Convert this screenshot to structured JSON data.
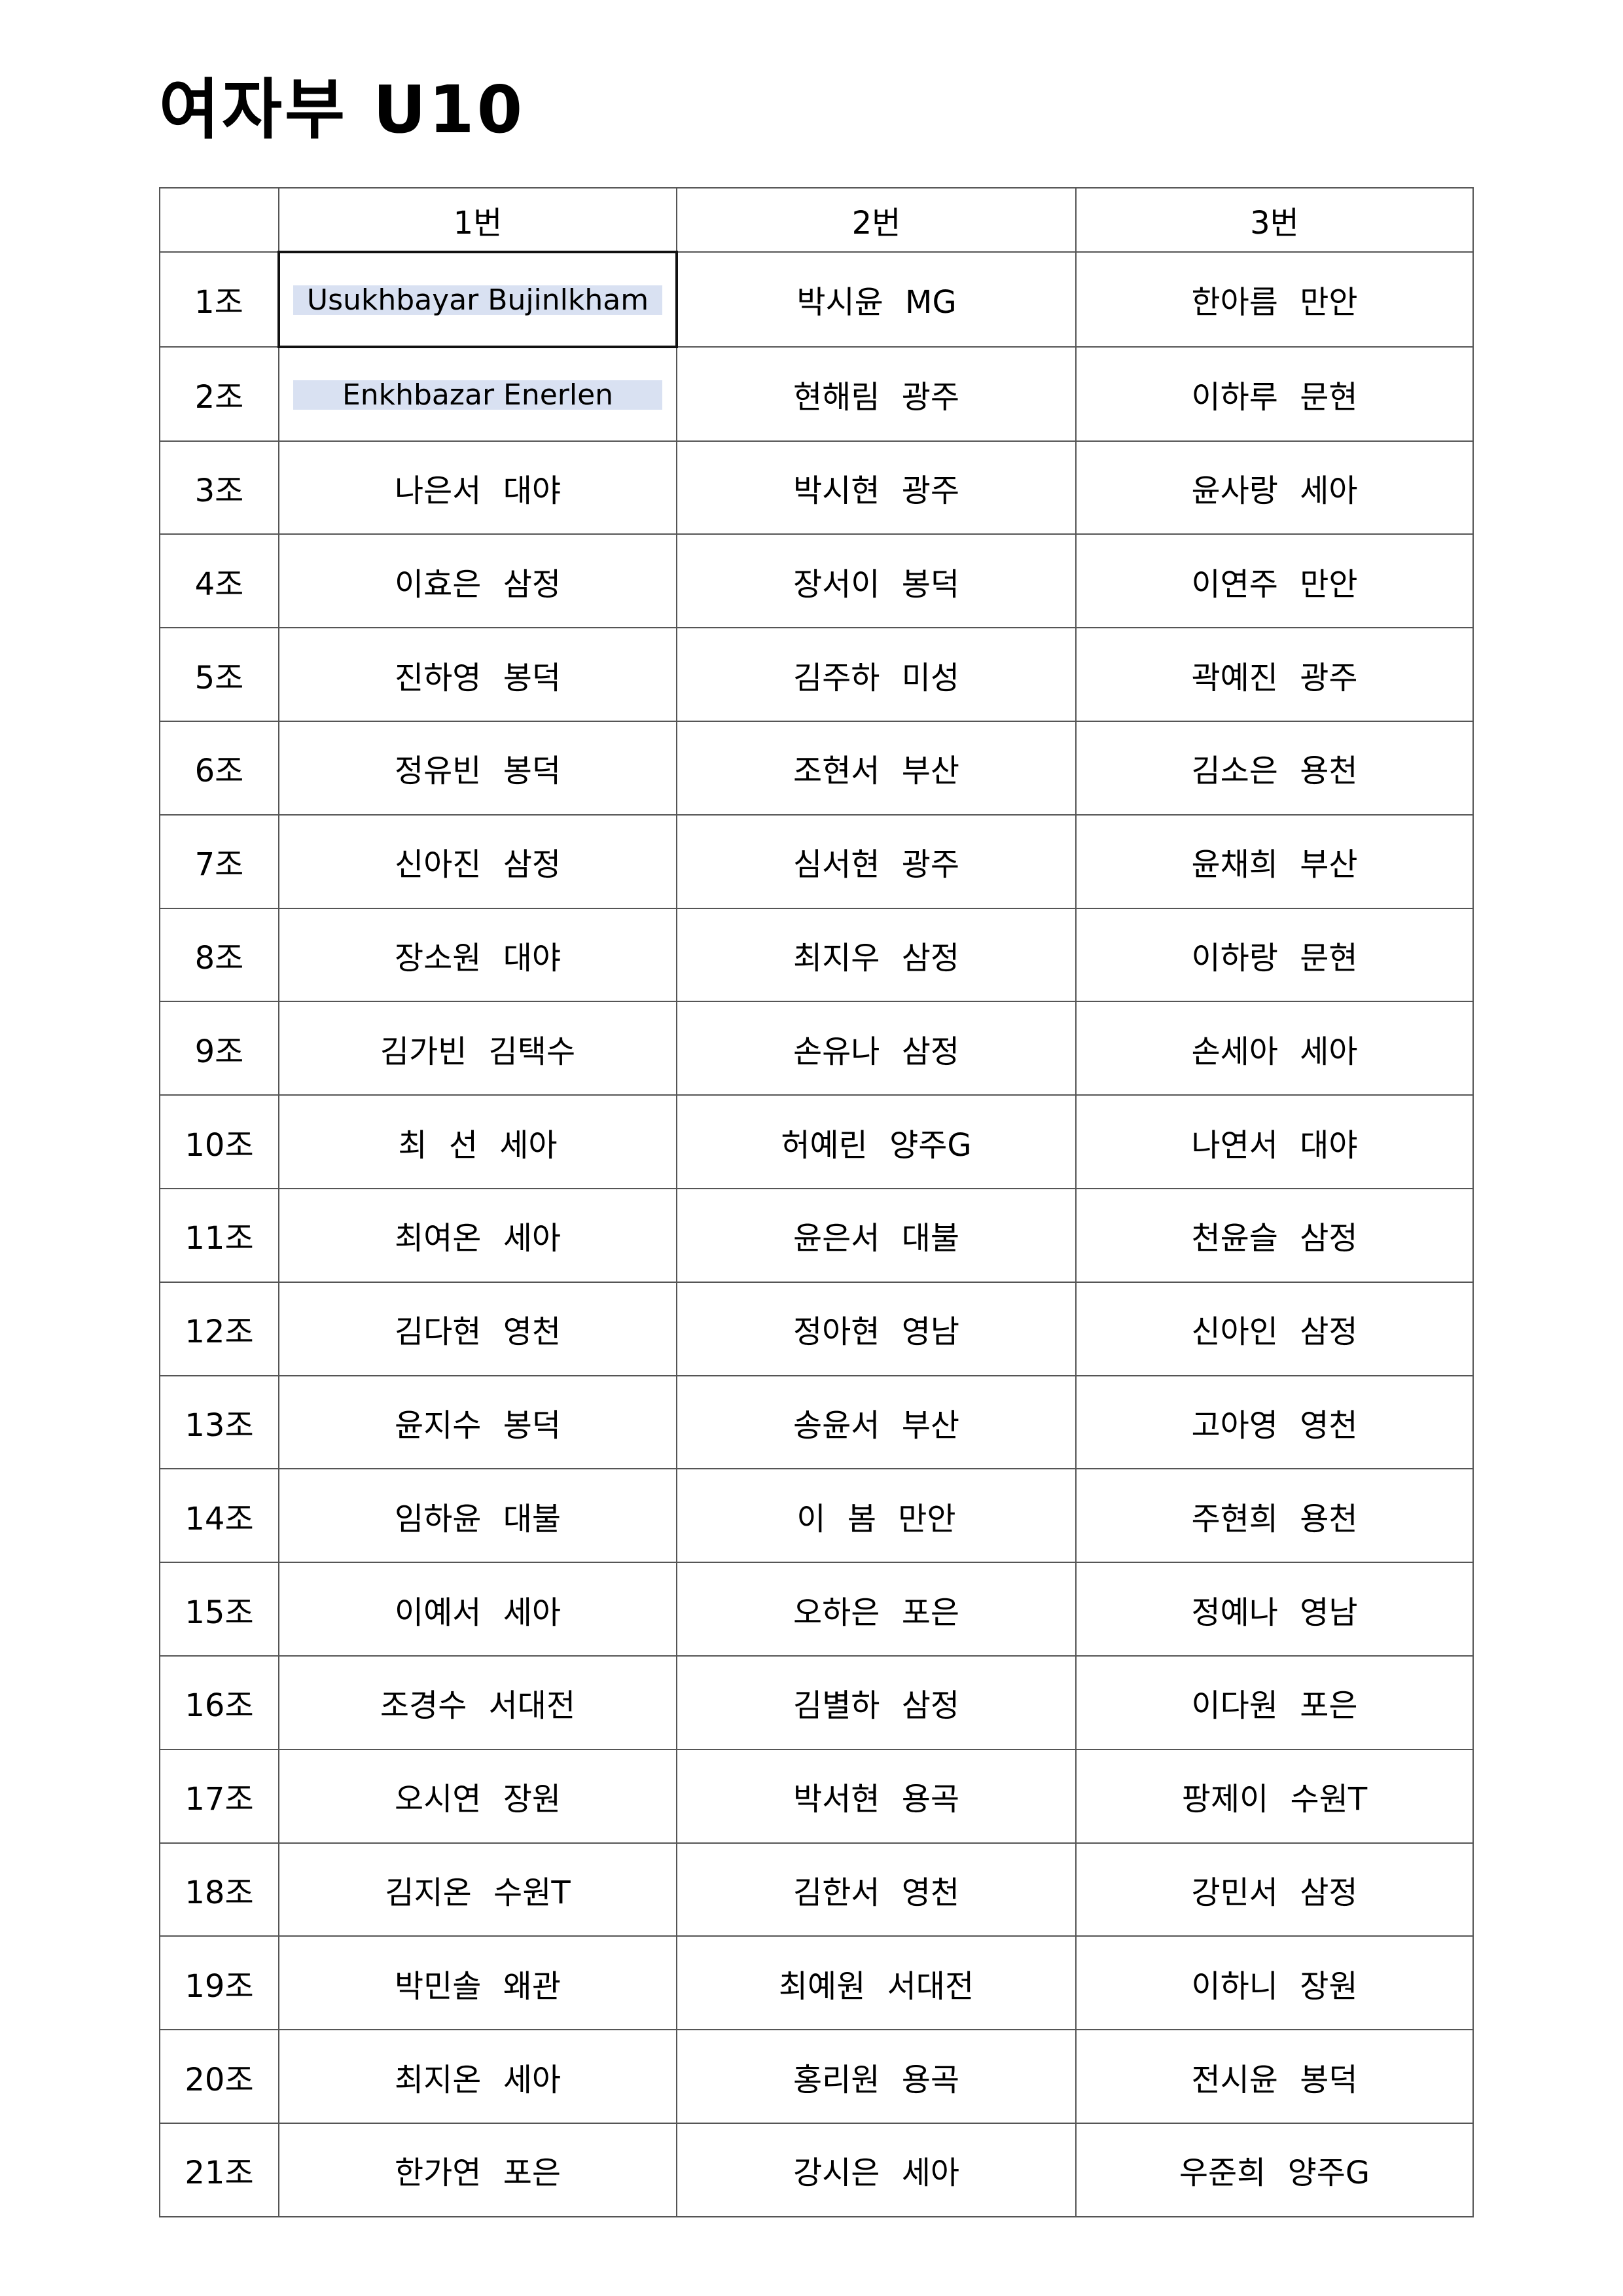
{
  "title": "여자부 U10",
  "headers": [
    "",
    "1번",
    "2번",
    "3번"
  ],
  "highlight_color": "#d9e1f2",
  "rows": [
    {
      "group": "1조",
      "p1": "Usukhbayar Bujinlkham",
      "p2": "박시윤 MG",
      "p3": "한아름 만안",
      "highlight": true,
      "selected": true
    },
    {
      "group": "2조",
      "p1": "Enkhbazar Enerlen",
      "p2": "현해림 광주",
      "p3": "이하루 문현",
      "highlight": true
    },
    {
      "group": "3조",
      "p1": "나은서 대야",
      "p2": "박시현 광주",
      "p3": "윤사랑 세아"
    },
    {
      "group": "4조",
      "p1": "이효은 삼정",
      "p2": "장서이 봉덕",
      "p3": "이연주 만안"
    },
    {
      "group": "5조",
      "p1": "진하영 봉덕",
      "p2": "김주하 미성",
      "p3": "곽예진 광주"
    },
    {
      "group": "6조",
      "p1": "정유빈 봉덕",
      "p2": "조현서 부산",
      "p3": "김소은 용천"
    },
    {
      "group": "7조",
      "p1": "신아진 삼정",
      "p2": "심서현 광주",
      "p3": "윤채희 부산"
    },
    {
      "group": "8조",
      "p1": "장소원 대야",
      "p2": "최지우 삼정",
      "p3": "이하랑 문현"
    },
    {
      "group": "9조",
      "p1": "김가빈 김택수",
      "p2": "손유나 삼정",
      "p3": "손세아 세아"
    },
    {
      "group": "10조",
      "p1": "최 선 세아",
      "p2": "허예린 양주G",
      "p3": "나연서 대야"
    },
    {
      "group": "11조",
      "p1": "최여온 세아",
      "p2": "윤은서 대불",
      "p3": "천윤슬 삼정"
    },
    {
      "group": "12조",
      "p1": "김다현 영천",
      "p2": "정아현 영남",
      "p3": "신아인 삼정"
    },
    {
      "group": "13조",
      "p1": "윤지수 봉덕",
      "p2": "송윤서 부산",
      "p3": "고아영 영천"
    },
    {
      "group": "14조",
      "p1": "임하윤 대불",
      "p2": "이 봄 만안",
      "p3": "주현희 용천"
    },
    {
      "group": "15조",
      "p1": "이예서 세아",
      "p2": "오하은 포은",
      "p3": "정예나 영남"
    },
    {
      "group": "16조",
      "p1": "조경수 서대전",
      "p2": "김별하 삼정",
      "p3": "이다원 포은"
    },
    {
      "group": "17조",
      "p1": "오시연 장원",
      "p2": "박서현 용곡",
      "p3": "팡제이 수원T"
    },
    {
      "group": "18조",
      "p1": "김지온 수원T",
      "p2": "김한서 영천",
      "p3": "강민서 삼정"
    },
    {
      "group": "19조",
      "p1": "박민솔 왜관",
      "p2": "최예원 서대전",
      "p3": "이하니 장원"
    },
    {
      "group": "20조",
      "p1": "최지온 세아",
      "p2": "홍리원 용곡",
      "p3": "전시윤 봉덕"
    },
    {
      "group": "21조",
      "p1": "한가연 포은",
      "p2": "강시은 세아",
      "p3": "우준희 양주G"
    }
  ]
}
